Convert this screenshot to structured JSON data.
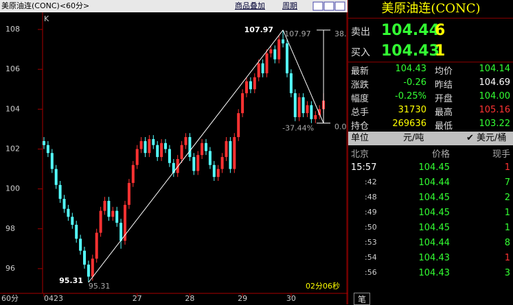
{
  "toolbar": {
    "title": "美原油连(CONC)<60分>",
    "overlay": "商品叠加",
    "period": "周期"
  },
  "chart_data": {
    "type": "candlestick",
    "axis_marker": "K",
    "period_label": "60分",
    "countdown": "02分06秒",
    "categories": [
      "0423",
      null,
      null,
      null,
      null,
      null,
      null,
      null,
      null,
      null,
      null,
      null,
      null,
      null,
      null,
      null,
      null,
      null,
      null,
      null,
      null,
      null,
      null,
      "27",
      null,
      null,
      null,
      null,
      null,
      null,
      null,
      null,
      null,
      null,
      null,
      null,
      "28",
      null,
      null,
      null,
      null,
      null,
      null,
      null,
      null,
      null,
      null,
      null,
      null,
      "29",
      null,
      null,
      null,
      null,
      null,
      null,
      null,
      null,
      null,
      null,
      null,
      "30",
      null,
      null,
      null,
      null,
      null,
      null,
      null,
      null
    ],
    "open": [
      102.4,
      102.2,
      101.8,
      101.0,
      100.2,
      99.5,
      99.0,
      98.6,
      98.2,
      97.5,
      96.9,
      96.2,
      95.6,
      96.5,
      97.8,
      98.9,
      99.4,
      98.6,
      98.9,
      98.3,
      97.4,
      99.2,
      100.3,
      101.2,
      102.0,
      102.4,
      101.8,
      102.5,
      102.2,
      101.6,
      102.3,
      102.0,
      101.3,
      100.8,
      101.5,
      102.2,
      102.6,
      101.6,
      100.9,
      101.7,
      102.3,
      101.9,
      101.2,
      100.6,
      101.0,
      101.6,
      102.4,
      101.0,
      102.6,
      103.8,
      104.8,
      105.4,
      105.0,
      105.6,
      106.3,
      105.8,
      106.8,
      107.0,
      106.5,
      107.5,
      107.3,
      105.8,
      104.8,
      103.6,
      104.6,
      103.8,
      104.2,
      103.5,
      103.7,
      104.0
    ],
    "close": [
      102.2,
      101.8,
      101.0,
      100.2,
      99.5,
      99.0,
      98.6,
      98.2,
      97.5,
      96.9,
      96.2,
      95.6,
      96.5,
      97.8,
      98.9,
      99.4,
      98.6,
      98.9,
      98.3,
      97.4,
      99.2,
      100.3,
      101.2,
      102.0,
      102.4,
      101.8,
      102.5,
      102.2,
      101.6,
      102.3,
      102.0,
      101.3,
      100.8,
      101.5,
      102.2,
      102.6,
      101.6,
      100.9,
      101.7,
      102.3,
      101.9,
      101.2,
      100.6,
      101.0,
      101.6,
      102.4,
      101.0,
      102.6,
      103.8,
      104.8,
      105.4,
      105.0,
      105.6,
      106.3,
      105.8,
      106.8,
      107.0,
      106.5,
      107.5,
      107.3,
      105.8,
      104.8,
      103.6,
      104.6,
      103.8,
      104.2,
      103.5,
      103.7,
      104.0,
      104.43
    ],
    "high": [
      102.6,
      102.4,
      102.0,
      101.2,
      100.4,
      99.7,
      99.2,
      98.8,
      98.4,
      97.7,
      97.1,
      96.4,
      96.7,
      98.0,
      99.1,
      99.6,
      99.6,
      99.1,
      99.1,
      98.5,
      99.4,
      100.5,
      101.4,
      102.2,
      102.6,
      102.6,
      102.7,
      102.7,
      102.4,
      102.5,
      102.5,
      102.2,
      101.5,
      101.7,
      102.4,
      102.8,
      102.8,
      101.8,
      101.9,
      102.5,
      102.5,
      102.1,
      101.4,
      101.2,
      101.8,
      102.6,
      102.6,
      102.8,
      104.0,
      105.0,
      105.6,
      105.6,
      105.8,
      106.5,
      106.5,
      107.0,
      107.2,
      107.2,
      107.7,
      107.97,
      107.5,
      106.0,
      105.0,
      104.8,
      104.8,
      104.4,
      104.4,
      103.9,
      104.2,
      104.8
    ],
    "low": [
      102.0,
      101.6,
      100.8,
      100.0,
      99.3,
      98.8,
      98.4,
      98.0,
      97.3,
      96.7,
      96.0,
      95.31,
      95.4,
      96.3,
      97.6,
      98.7,
      98.4,
      98.4,
      98.1,
      97.0,
      97.2,
      99.0,
      100.1,
      101.0,
      101.8,
      101.6,
      101.6,
      102.0,
      101.4,
      101.4,
      101.8,
      101.1,
      100.6,
      100.6,
      101.3,
      102.0,
      101.4,
      100.7,
      100.7,
      101.5,
      101.7,
      101.0,
      100.4,
      100.4,
      100.8,
      101.4,
      100.8,
      100.8,
      102.4,
      103.6,
      104.6,
      104.8,
      104.8,
      105.4,
      105.6,
      105.6,
      106.6,
      106.3,
      106.3,
      107.1,
      105.6,
      104.6,
      103.4,
      103.4,
      103.6,
      103.6,
      103.3,
      103.3,
      103.5,
      103.8
    ],
    "ylim": [
      94.76,
      108.79
    ],
    "yticks": [
      96,
      98,
      100,
      102,
      104,
      106,
      108
    ],
    "up_color": "#ff3232",
    "down_color": "#54ffff",
    "annotations": {
      "high_left": "107.97",
      "high_right": "107.97",
      "low_left": "95.31",
      "low_below": "95.31",
      "ratio": "-37.44%",
      "ratio_top": "38.",
      "ratio_bottom": "0.0"
    }
  },
  "quote": {
    "name": "美原油连(CONC)",
    "sell": {
      "label": "卖出",
      "price": "104.44",
      "volume": "6"
    },
    "buy": {
      "label": "买入",
      "price": "104.43",
      "volume": "1"
    },
    "stats": [
      [
        "最新",
        "104.43",
        "均价",
        "104.14"
      ],
      [
        "涨跌",
        "-0.26",
        "昨结",
        "104.69"
      ],
      [
        "幅度",
        "-0.25%",
        "开盘",
        "104.00"
      ],
      [
        "总手",
        "31730",
        "最高",
        "105.16"
      ],
      [
        "持仓",
        "269636",
        "最低",
        "103.22"
      ]
    ],
    "unit": {
      "label": "单位",
      "option1": "元/吨",
      "option2": "美元/桶"
    },
    "ticks_header": [
      "北京",
      "价格",
      "现手"
    ],
    "ticks": [
      [
        "15:57",
        "104.45",
        "1"
      ],
      [
        ":42",
        "104.44",
        "7"
      ],
      [
        ":48",
        "104.45",
        "2"
      ],
      [
        ":49",
        "104.45",
        "1"
      ],
      [
        ":50",
        "104.45",
        "1"
      ],
      [
        ":53",
        "104.44",
        "8"
      ],
      [
        ":54",
        "104.43",
        "1"
      ],
      [
        ":56",
        "104.43",
        "3"
      ]
    ],
    "tab": "笔"
  }
}
